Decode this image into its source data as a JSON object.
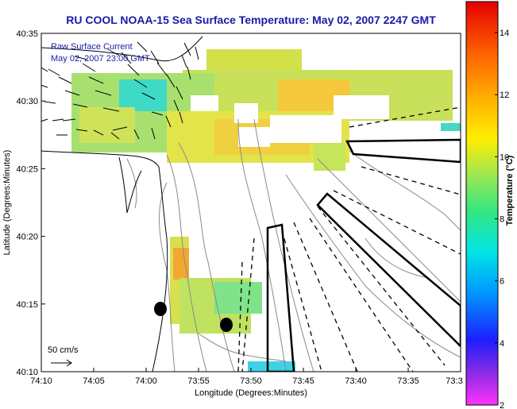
{
  "title": "RU COOL  NOAA-15  Sea Surface Temperature:  May 02, 2007 2247 GMT",
  "legend": {
    "line1": "Raw Surface Current",
    "line2": "May 02, 2007 23:00 GMT",
    "scale_label": "50 cm/s"
  },
  "x_axis": {
    "label": "Longitude (Degrees:Minutes)",
    "ticks": [
      "74:10",
      "74:05",
      "74:00",
      "73:55",
      "73:50",
      "73:45",
      "73:40",
      "73:35",
      "73:3"
    ]
  },
  "y_axis": {
    "label": "Latitude (Degrees:Minutes)",
    "ticks": [
      "40:35",
      "40:30",
      "40:25",
      "40:20",
      "40:15",
      "40:10"
    ]
  },
  "colorbar": {
    "label": "Temperature (°C)",
    "ticks": [
      "14",
      "12",
      "10",
      "8",
      "6",
      "4",
      "2"
    ],
    "range": [
      2,
      15
    ]
  },
  "colors": {
    "title": "#1a1aa8",
    "land": "#ffffff",
    "sea_clear": "#ffffff"
  }
}
